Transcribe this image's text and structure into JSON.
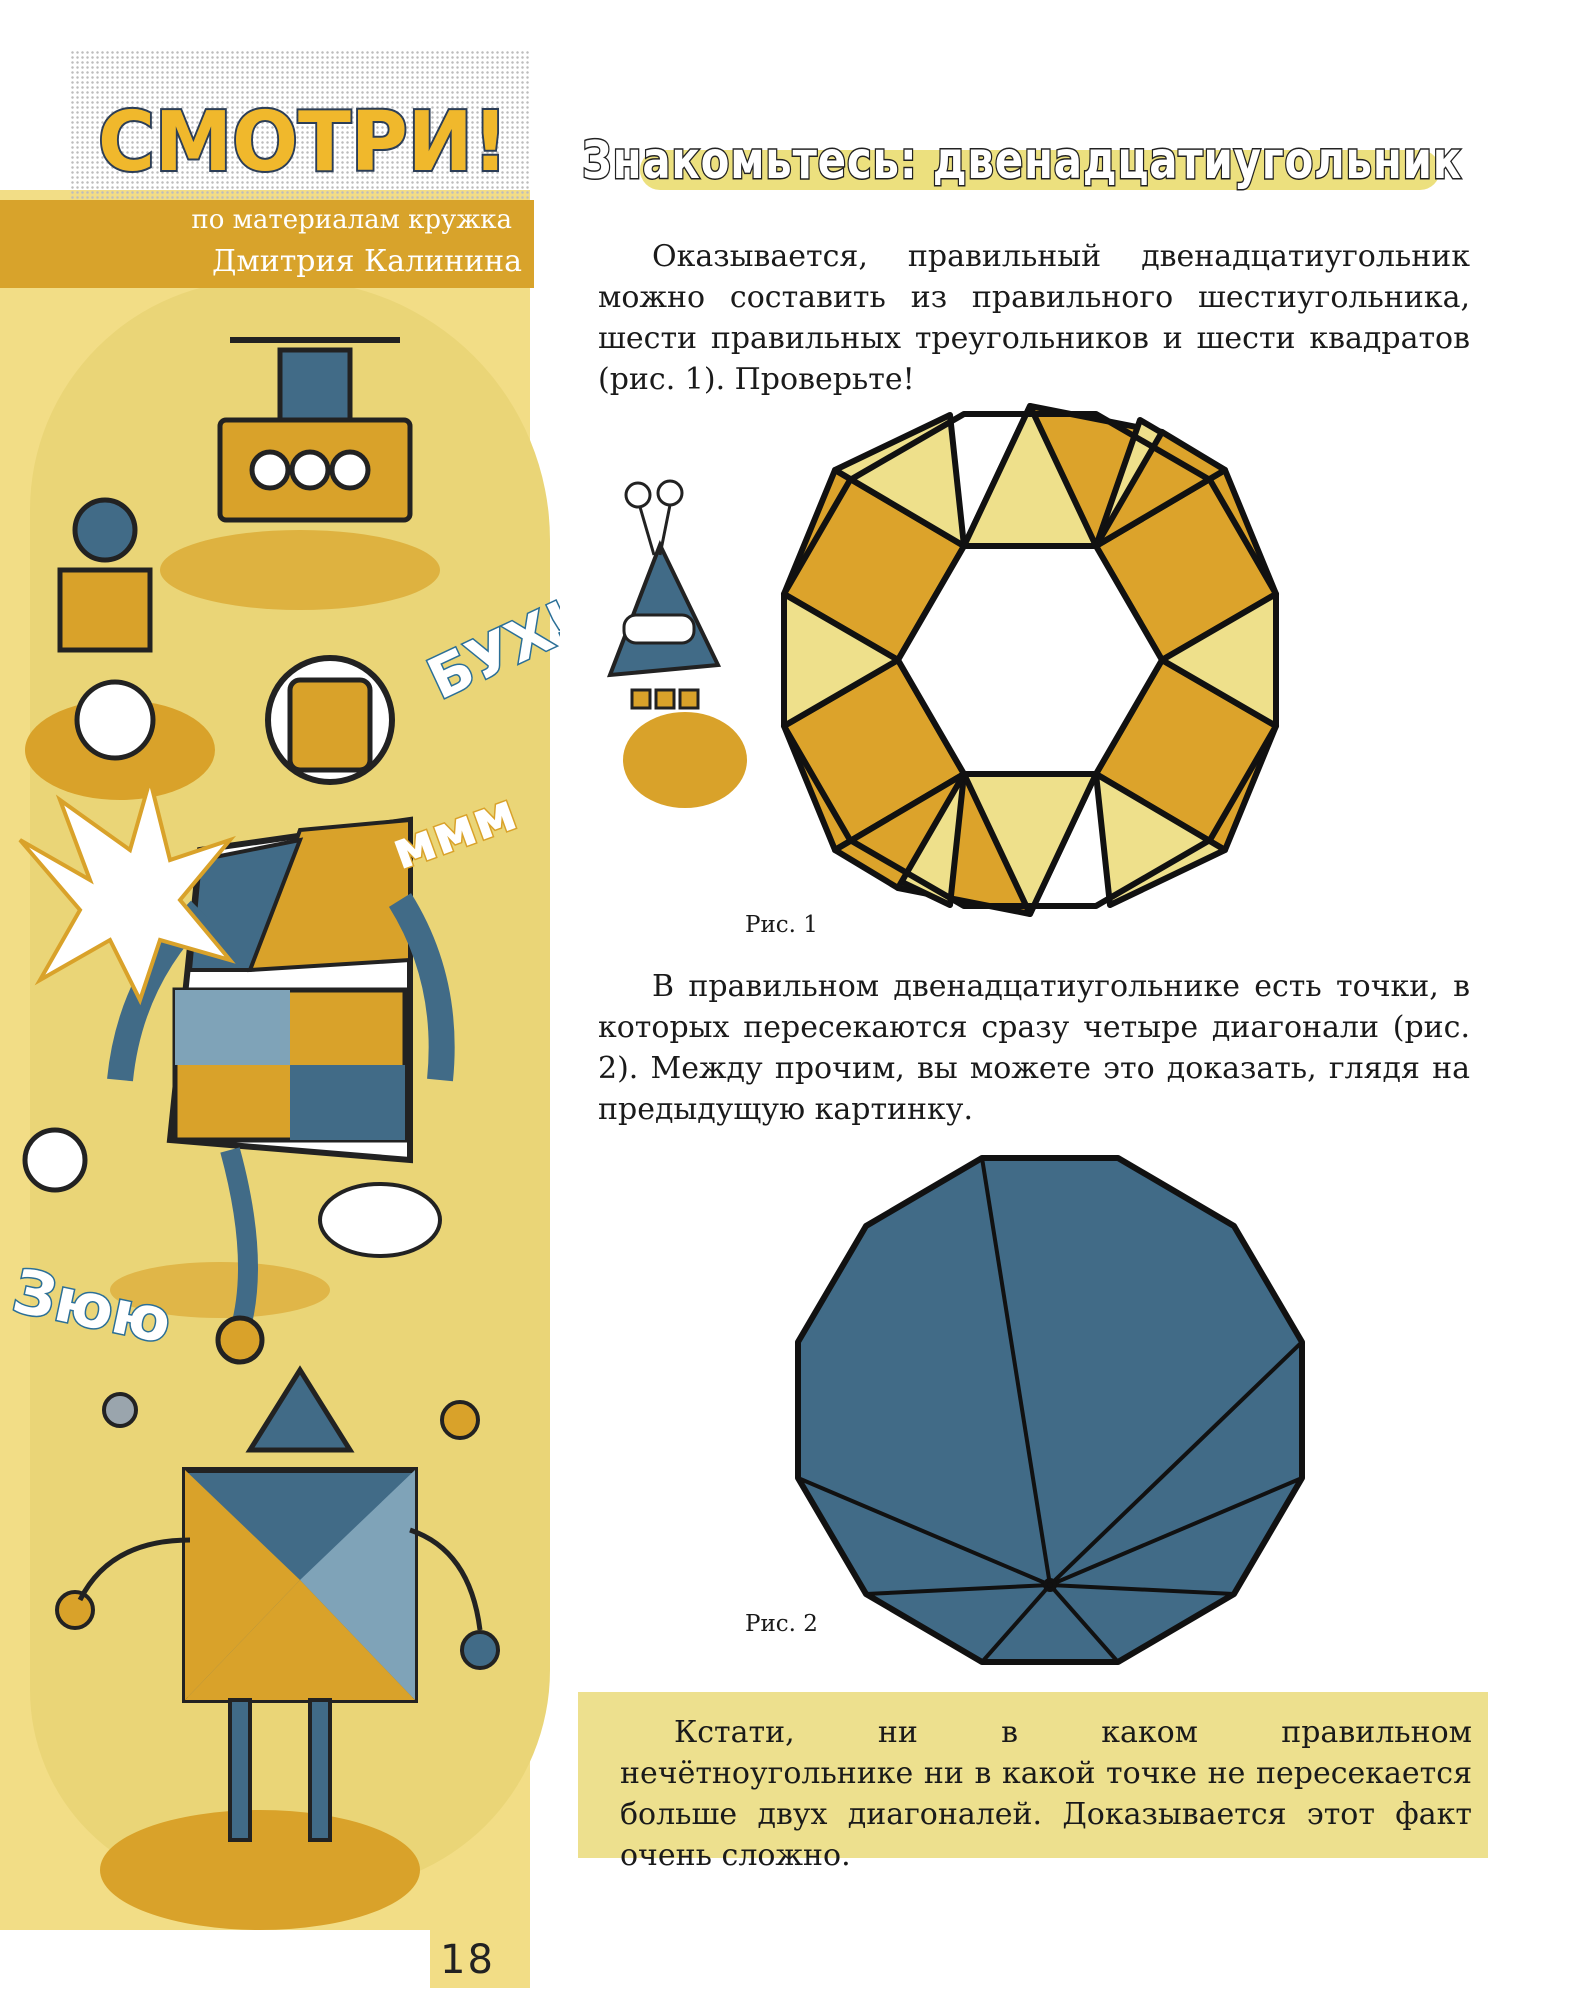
{
  "logo": {
    "text": "СМОТРИ!"
  },
  "credit": {
    "line1": "по материалам кружка",
    "line2": "Дмитрия Калинина"
  },
  "title": "Знакомьтесь: двенадцатиугольник",
  "paragraph1": "Оказывается, правильный двенадцатиугольник можно составить из правильного шестиугольника, шести правильных треугольников и шести квадратов (рис. 1). Проверьте!",
  "figure1": {
    "caption": "Рис. 1"
  },
  "paragraph2": "В правильном двенадцатиугольнике есть точки, в которых пересекаются сразу четыре диагонали (рис. 2). Между прочим, вы можете это доказать, глядя на предыдущую картинку.",
  "figure2": {
    "caption": "Рис. 2"
  },
  "note": "Кстати, ни в каком правильном нечётноугольнике ни в какой точке не пересекается больше двух диагоналей. Доказывается этот факт очень сложно.",
  "sound_words": [
    "БУХ!",
    "Зюю",
    "ммм"
  ],
  "page_number": "18",
  "colors": {
    "accent_orange": "#dca32b",
    "light_yellow": "#eee08b",
    "blue_gray": "#416b87",
    "strip_yellow": "#f2dd86"
  }
}
